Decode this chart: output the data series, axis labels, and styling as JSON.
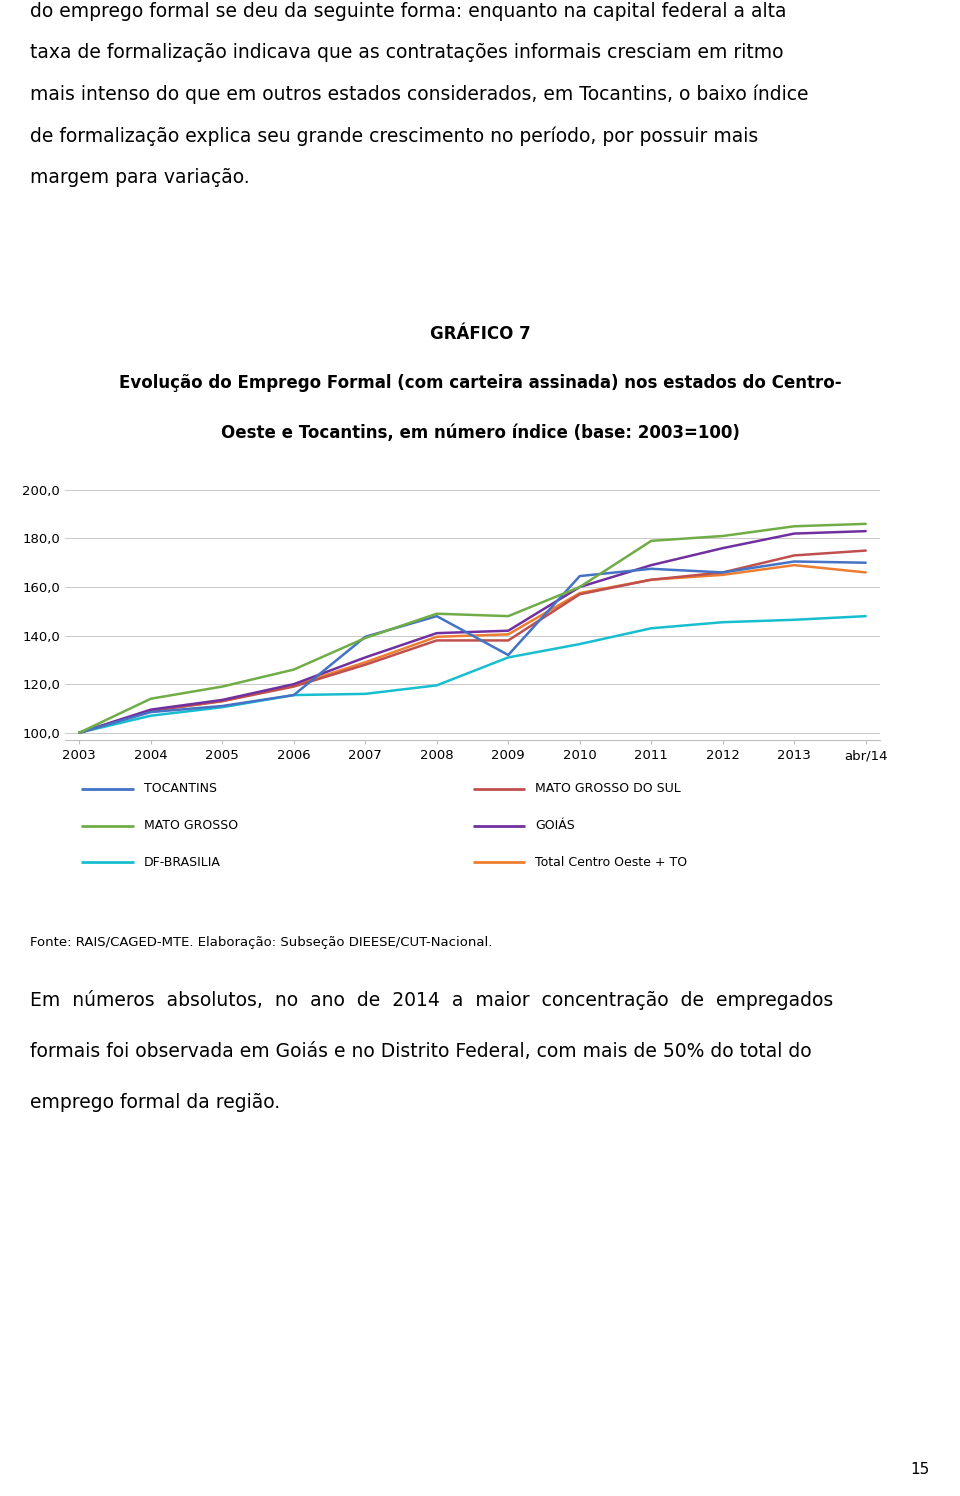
{
  "title_line1": "GRÁFICO 7",
  "title_sub1": "Evolução do Emprego Formal (com carteira assinada) nos estados do Centro-",
  "title_sub2": "Oeste e Tocantins, em número índice (base: 2003=100)",
  "x_labels": [
    "2003",
    "2004",
    "2005",
    "2006",
    "2007",
    "2008",
    "2009",
    "2010",
    "2011",
    "2012",
    "2013",
    "abr/14"
  ],
  "ylim": [
    97,
    202
  ],
  "yticks": [
    100.0,
    120.0,
    140.0,
    160.0,
    180.0,
    200.0
  ],
  "series": {
    "TOCANTINS": {
      "values": [
        100.0,
        108.5,
        111.0,
        115.5,
        139.5,
        148.0,
        132.0,
        164.5,
        167.5,
        166.0,
        170.5,
        170.0
      ],
      "color": "#4472C4",
      "linewidth": 1.8
    },
    "MATO GROSSO": {
      "values": [
        100.0,
        114.0,
        119.0,
        126.0,
        139.0,
        149.0,
        148.0,
        160.0,
        179.0,
        181.0,
        185.0,
        186.0
      ],
      "color": "#70AD47",
      "linewidth": 1.8
    },
    "DF-BRASILIA": {
      "values": [
        100.0,
        107.0,
        110.5,
        115.5,
        116.0,
        119.5,
        131.0,
        136.5,
        143.0,
        145.5,
        146.5,
        148.0
      ],
      "color": "#17BECF",
      "linewidth": 1.8
    },
    "MATO GROSSO DO SUL": {
      "values": [
        100.0,
        109.0,
        113.0,
        119.0,
        128.0,
        138.0,
        138.0,
        157.0,
        163.0,
        166.0,
        173.0,
        175.0
      ],
      "color": "#C0504D",
      "linewidth": 1.8
    },
    "GOIÁS": {
      "values": [
        100.0,
        109.5,
        113.5,
        120.0,
        131.0,
        141.0,
        142.0,
        160.0,
        169.0,
        176.0,
        182.0,
        183.0
      ],
      "color": "#7030A0",
      "linewidth": 1.8
    },
    "Total Centro Oeste + TO": {
      "values": [
        100.0,
        109.0,
        113.0,
        119.5,
        129.0,
        139.5,
        140.5,
        157.5,
        163.0,
        165.0,
        169.0,
        166.0
      ],
      "color": "#ED7D31",
      "linewidth": 1.8
    }
  },
  "df_brasilia_color": "#17BECF",
  "fonte_text": "Fonte: RAIS/CAGED-MTE. Elaboração: Subseção DIEESE/CUT-Nacional.",
  "background_color": "#FFFFFF",
  "plot_bg_color": "#FFFFFF",
  "grid_color": "#BFBFBF",
  "intro_lines": [
    "do emprego formal se deu da seguinte forma: enquanto na capital federal a alta",
    "taxa de formalização indicava que as contratações informais cresciam em ritmo",
    "mais intenso do que em outros estados considerados, em Tocantins, o baixo índice",
    "de formalização explica seu grande crescimento no período, por possuir mais",
    "margem para variação."
  ],
  "bottom_lines": [
    "Em  números  absolutos,  no  ano  de  2014  a  maior  concentração  de  empregados",
    "formais foi observada em Goiás e no Distrito Federal, com mais de 50% do total do",
    "emprego formal da região."
  ],
  "page_number": "15",
  "left_legend": [
    "TOCANTINS",
    "MATO GROSSO",
    "DF-BRASILIA"
  ],
  "right_legend": [
    "MATO GROSSO DO SUL",
    "GOIÁS",
    "Total Centro Oeste + TO"
  ]
}
